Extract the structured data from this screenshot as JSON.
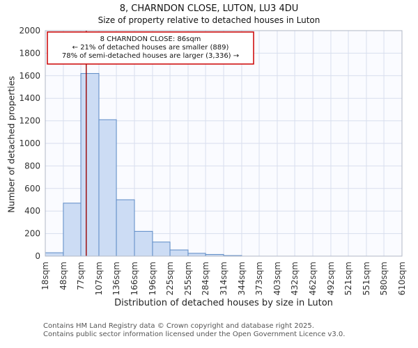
{
  "title": "8, CHARNDON CLOSE, LUTON, LU3 4DU",
  "subtitle": "Size of property relative to detached houses in Luton",
  "chart_data": {
    "type": "bar",
    "ylabel": "Number of detached properties",
    "xlabel": "Distribution of detached houses by size in Luton",
    "ylim": [
      0,
      2000
    ],
    "ytick_step": 200,
    "grid": true,
    "tick_values": [
      18,
      48,
      77,
      107,
      136,
      166,
      196,
      225,
      255,
      284,
      314,
      344,
      373,
      403,
      432,
      462,
      492,
      521,
      551,
      580,
      610
    ],
    "tick_labels": [
      "18sqm",
      "48sqm",
      "77sqm",
      "107sqm",
      "136sqm",
      "166sqm",
      "196sqm",
      "225sqm",
      "255sqm",
      "284sqm",
      "314sqm",
      "344sqm",
      "373sqm",
      "403sqm",
      "432sqm",
      "462sqm",
      "492sqm",
      "521sqm",
      "551sqm",
      "580sqm",
      "610sqm"
    ],
    "values": [
      30,
      470,
      1620,
      1210,
      500,
      220,
      125,
      55,
      25,
      15,
      5,
      0,
      0,
      0,
      0,
      0,
      0,
      0,
      0,
      0
    ],
    "bar_fill": "#ccdcf4",
    "bar_stroke": "#5b8ac5",
    "grid_color": "#d8deee",
    "plot_bg": "#fafbff",
    "spine_color": "#b0b7c6",
    "marker": {
      "value": 86,
      "color": "#990000"
    },
    "annotation": {
      "border_color": "#cc0000",
      "lines": [
        "8 CHARNDON CLOSE: 86sqm",
        "← 21% of detached houses are smaller (889)",
        "78% of semi-detached houses are larger (3,336) →"
      ]
    }
  },
  "footer": {
    "line1": "Contains HM Land Registry data © Crown copyright and database right 2025.",
    "line2": "Contains public sector information licensed under the Open Government Licence v3.0."
  }
}
